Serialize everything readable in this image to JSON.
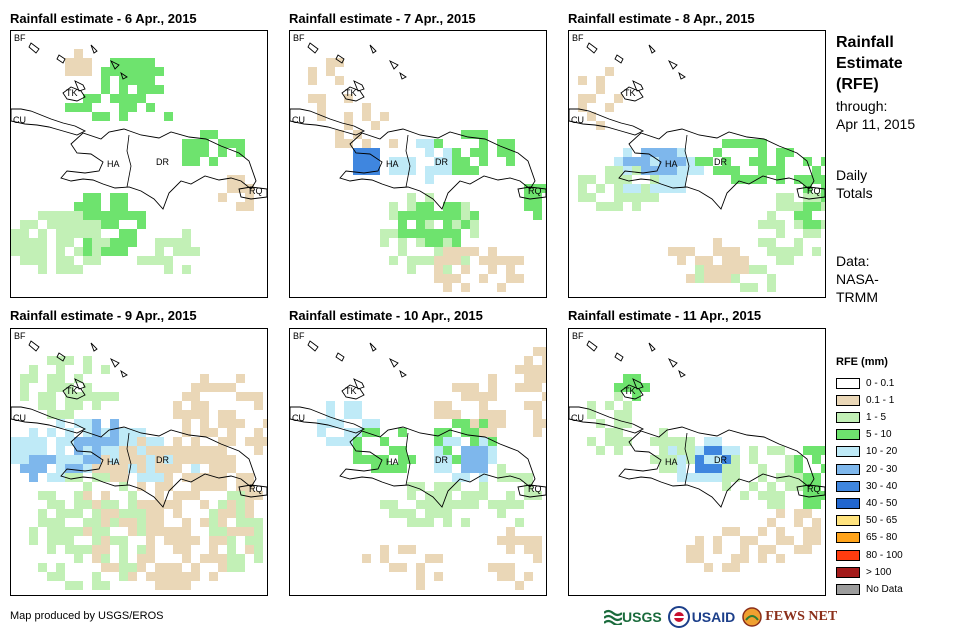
{
  "panels": [
    {
      "title": "Rainfall estimate - 6 Apr., 2015"
    },
    {
      "title": "Rainfall estimate - 7 Apr., 2015"
    },
    {
      "title": "Rainfall estimate - 8 Apr., 2015"
    },
    {
      "title": "Rainfall estimate - 9 Apr., 2015"
    },
    {
      "title": "Rainfall estimate - 10 Apr., 2015"
    },
    {
      "title": "Rainfall estimate - 11 Apr., 2015"
    }
  ],
  "map_labels": {
    "bf": "BF",
    "cu": "CU",
    "tk": "TK",
    "ha": "HA",
    "dr": "DR",
    "rq": "RQ"
  },
  "side": {
    "title_line1": "Rainfall",
    "title_line2": "Estimate",
    "title_line3": "(RFE)",
    "through_label": "through:",
    "through_date": "Apr 11, 2015",
    "daily_line1": "Daily",
    "daily_line2": "Totals",
    "data_line1": "Data:",
    "data_line2": "NASA-",
    "data_line3": "TRMM"
  },
  "legend": {
    "title": "RFE (mm)",
    "items": [
      {
        "label": "0 - 0.1",
        "color": "#ffffff"
      },
      {
        "label": "0.1 - 1",
        "color": "#ead7b7"
      },
      {
        "label": "1 - 5",
        "color": "#c2f0b6"
      },
      {
        "label": "5 - 10",
        "color": "#6ee36e"
      },
      {
        "label": "10 - 20",
        "color": "#bfeaf7"
      },
      {
        "label": "20 - 30",
        "color": "#7eb7ec"
      },
      {
        "label": "30 - 40",
        "color": "#3f86df"
      },
      {
        "label": "40 - 50",
        "color": "#2166cf"
      },
      {
        "label": "50 - 65",
        "color": "#ffe37e"
      },
      {
        "label": "65 - 80",
        "color": "#ffa31a"
      },
      {
        "label": "80 - 100",
        "color": "#ff3c0f"
      },
      {
        "label": "> 100",
        "color": "#a31a1a"
      },
      {
        "label": "No Data",
        "color": "#9c9c9c"
      }
    ]
  },
  "credit": "Map produced by USGS/EROS",
  "logos": {
    "usgs": "USGS",
    "usaid": "USAID",
    "fews": "FEWS NET"
  }
}
